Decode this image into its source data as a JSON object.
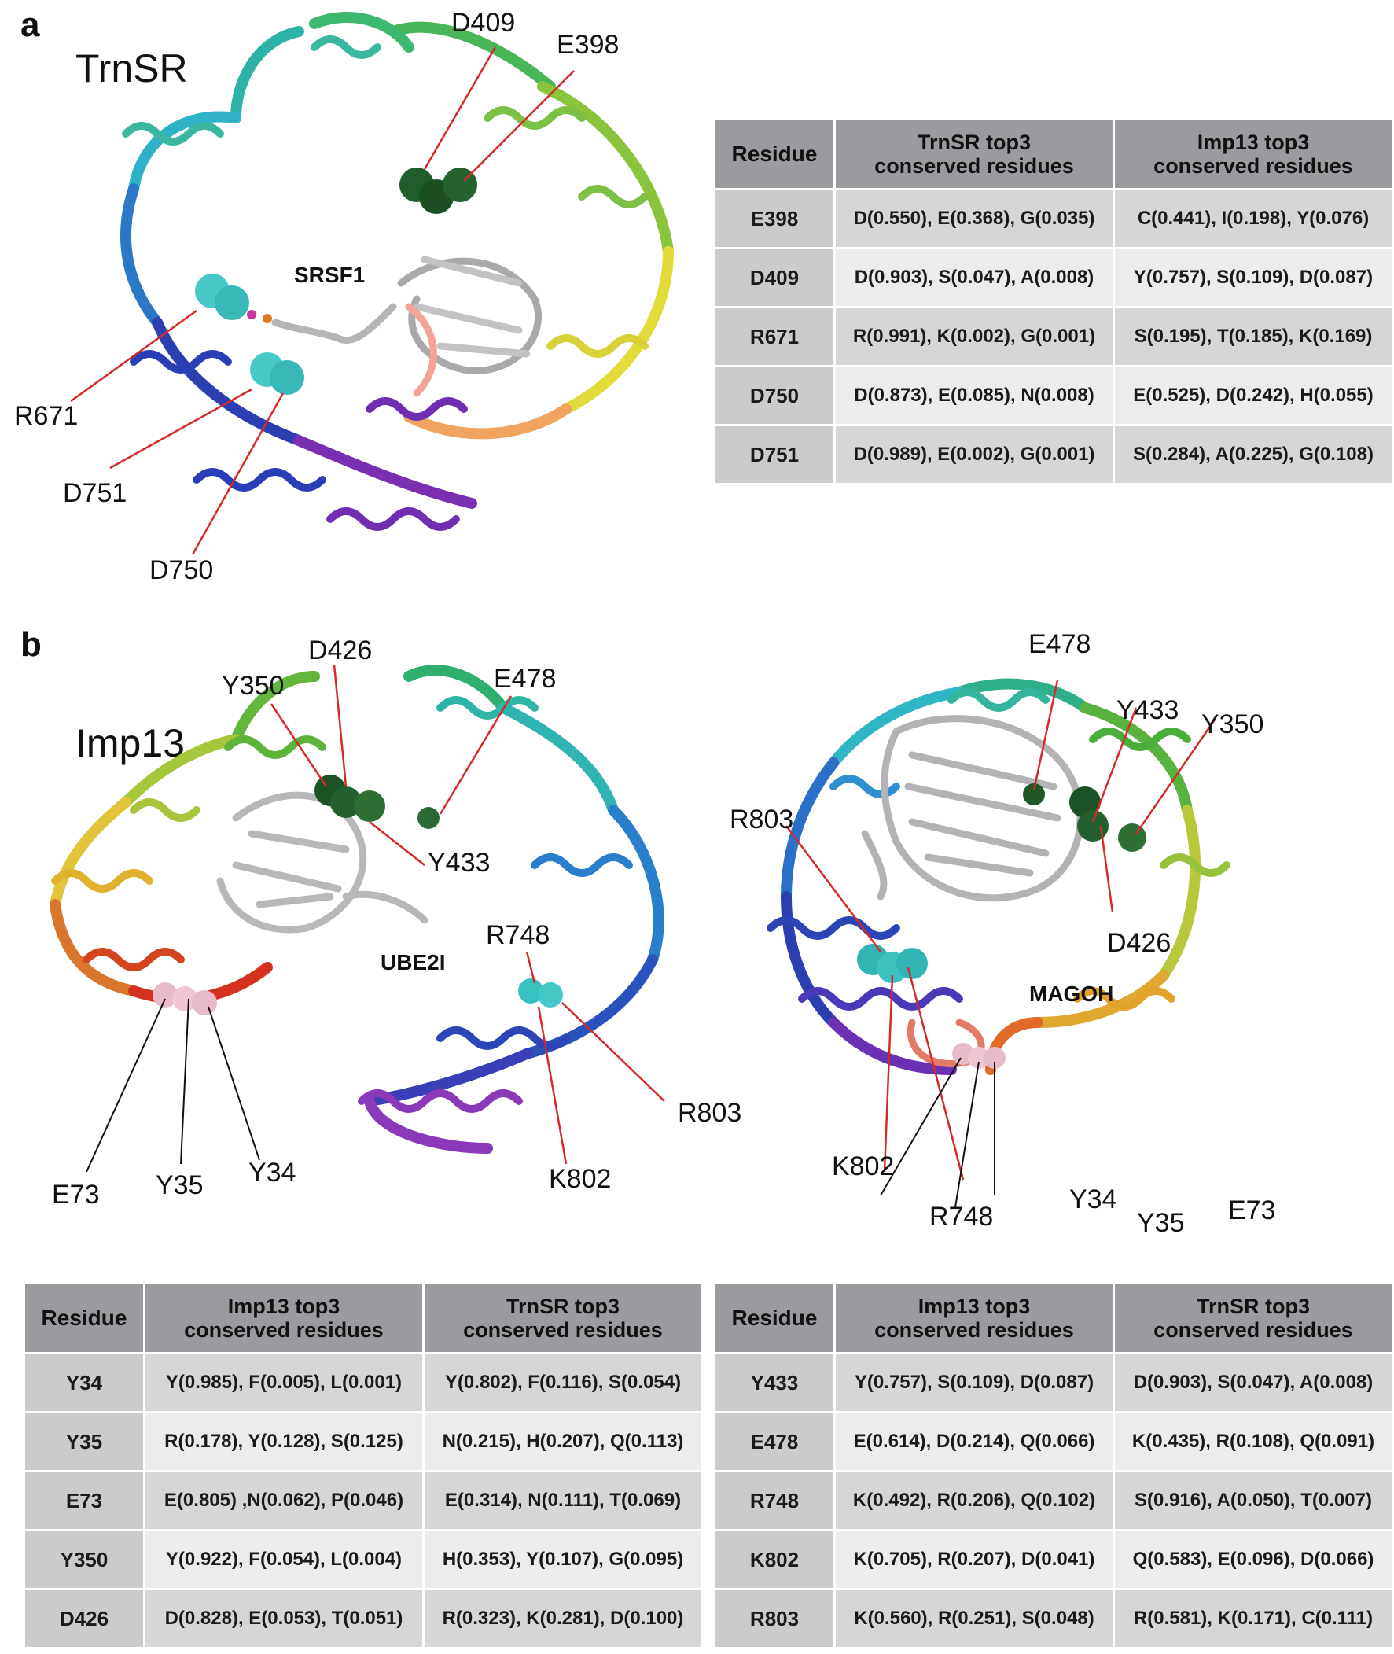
{
  "panel_a": {
    "letter": "a",
    "protein": "TrnSR",
    "partner": "SRSF1",
    "labels": {
      "d409": "D409",
      "e398": "E398",
      "r671": "R671",
      "d751": "D751",
      "d750": "D750"
    },
    "table": {
      "headers": [
        "Residue",
        "TrnSR top3\nconserved residues",
        "Imp13 top3\nconserved residues"
      ],
      "rows": [
        [
          "E398",
          "D(0.550), E(0.368), G(0.035)",
          "C(0.441), I(0.198), Y(0.076)"
        ],
        [
          "D409",
          "D(0.903), S(0.047), A(0.008)",
          "Y(0.757), S(0.109), D(0.087)"
        ],
        [
          "R671",
          "R(0.991), K(0.002), G(0.001)",
          "S(0.195), T(0.185), K(0.169)"
        ],
        [
          "D750",
          "D(0.873), E(0.085), N(0.008)",
          "E(0.525), D(0.242), H(0.055)"
        ],
        [
          "D751",
          "D(0.989), E(0.002), G(0.001)",
          "S(0.284), A(0.225), G(0.108)"
        ]
      ]
    }
  },
  "panel_b": {
    "letter": "b",
    "protein": "Imp13",
    "left_structure": {
      "partner": "UBE2I",
      "labels": {
        "y350": "Y350",
        "d426": "D426",
        "e478": "E478",
        "y433": "Y433",
        "r748": "R748",
        "r803": "R803",
        "k802": "K802",
        "e73": "E73",
        "y35": "Y35",
        "y34": "Y34"
      }
    },
    "right_structure": {
      "partner": "MAGOH",
      "labels": {
        "e478": "E478",
        "y433": "Y433",
        "y350": "Y350",
        "r803": "R803",
        "d426": "D426",
        "k802": "K802",
        "r748": "R748",
        "y34": "Y34",
        "y35": "Y35",
        "e73": "E73"
      }
    },
    "table_left": {
      "headers": [
        "Residue",
        "Imp13 top3\nconserved residues",
        "TrnSR top3\nconserved residues"
      ],
      "rows": [
        [
          "Y34",
          "Y(0.985), F(0.005), L(0.001)",
          "Y(0.802), F(0.116), S(0.054)"
        ],
        [
          "Y35",
          "R(0.178), Y(0.128), S(0.125)",
          "N(0.215), H(0.207), Q(0.113)"
        ],
        [
          "E73",
          "E(0.805) ,N(0.062), P(0.046)",
          "E(0.314), N(0.111), T(0.069)"
        ],
        [
          "Y350",
          "Y(0.922), F(0.054), L(0.004)",
          "H(0.353), Y(0.107), G(0.095)"
        ],
        [
          "D426",
          "D(0.828), E(0.053), T(0.051)",
          "R(0.323), K(0.281), D(0.100)"
        ]
      ]
    },
    "table_right": {
      "headers": [
        "Residue",
        "Imp13 top3\nconserved residues",
        "TrnSR top3\nconserved residues"
      ],
      "rows": [
        [
          "Y433",
          "Y(0.757), S(0.109), D(0.087)",
          "D(0.903), S(0.047), A(0.008)"
        ],
        [
          "E478",
          "E(0.614), D(0.214), Q(0.066)",
          "K(0.435), R(0.108), Q(0.091)"
        ],
        [
          "R748",
          "K(0.492), R(0.206), Q(0.102)",
          "S(0.916), A(0.050), T(0.007)"
        ],
        [
          "K802",
          "K(0.705), R(0.207), D(0.041)",
          "Q(0.583), E(0.096), D(0.066)"
        ],
        [
          "R803",
          "K(0.560), R(0.251), S(0.048)",
          "R(0.581), K(0.171), C(0.111)"
        ]
      ]
    }
  },
  "colors": {
    "leader_red": "#d42a2a",
    "leader_black": "#111111",
    "header_gray": "#9a9b9e"
  }
}
